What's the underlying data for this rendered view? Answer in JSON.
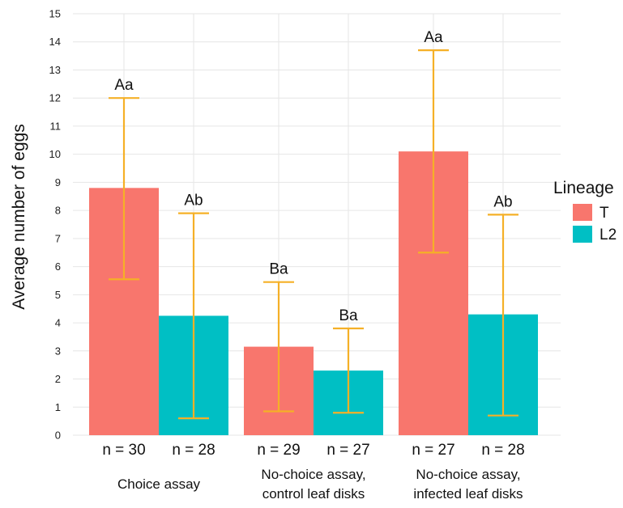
{
  "chart_data": {
    "type": "bar",
    "ylabel": "Average number of eggs",
    "ylim": [
      0,
      15
    ],
    "yticks": [
      0,
      1,
      2,
      3,
      4,
      5,
      6,
      7,
      8,
      9,
      10,
      11,
      12,
      13,
      14,
      15
    ],
    "grid": true,
    "legend": {
      "title": "Lineage",
      "position": "right",
      "entries": [
        {
          "name": "T",
          "color": "#F8766D"
        },
        {
          "name": "L2",
          "color": "#00BFC4"
        }
      ]
    },
    "error_bar_color": "#F5B027",
    "groups": [
      {
        "label_lines": [
          "Choice assay"
        ],
        "bars": [
          {
            "series": "T",
            "value": 8.8,
            "err_low": 5.55,
            "err_high": 12.0,
            "n_label": "n = 30",
            "sig": "Aa"
          },
          {
            "series": "L2",
            "value": 4.25,
            "err_low": 0.6,
            "err_high": 7.9,
            "n_label": "n = 28",
            "sig": "Ab"
          }
        ]
      },
      {
        "label_lines": [
          "No-choice assay,",
          "control leaf disks"
        ],
        "bars": [
          {
            "series": "T",
            "value": 3.15,
            "err_low": 0.85,
            "err_high": 5.45,
            "n_label": "n = 29",
            "sig": "Ba"
          },
          {
            "series": "L2",
            "value": 2.3,
            "err_low": 0.8,
            "err_high": 3.8,
            "n_label": "n = 27",
            "sig": "Ba"
          }
        ]
      },
      {
        "label_lines": [
          "No-choice assay,",
          "infected leaf disks"
        ],
        "bars": [
          {
            "series": "T",
            "value": 10.1,
            "err_low": 6.5,
            "err_high": 13.7,
            "n_label": "n = 27",
            "sig": "Aa"
          },
          {
            "series": "L2",
            "value": 4.3,
            "err_low": 0.7,
            "err_high": 7.85,
            "n_label": "n = 28",
            "sig": "Ab"
          }
        ]
      }
    ]
  }
}
